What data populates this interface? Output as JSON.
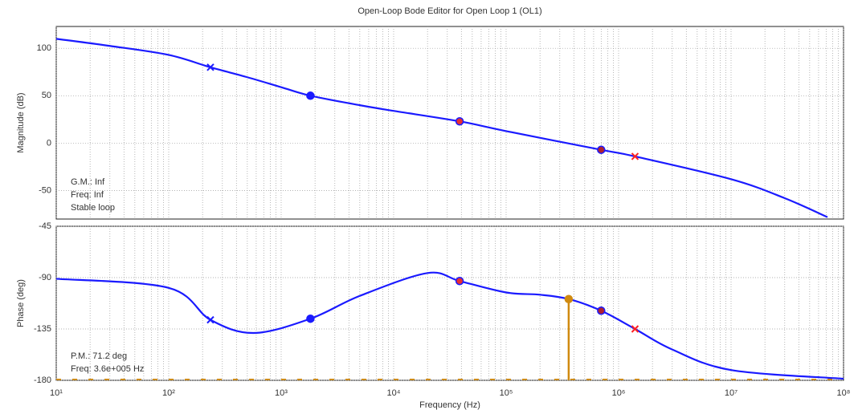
{
  "chart_data": [
    {
      "type": "line",
      "title": "Open-Loop Bode Editor for Open Loop 1 (OL1)",
      "y_label": "Magnitude (dB)",
      "log_x": true,
      "grid": true,
      "xlim": [
        10,
        100000000
      ],
      "ylim": [
        -80,
        123
      ],
      "yticks": [
        -50,
        0,
        50,
        100
      ],
      "annotations": [
        "G.M.: Inf",
        "Freq: Inf",
        "Stable loop"
      ],
      "series": [
        {
          "color": "#1a1aff",
          "x": [
            10,
            30,
            100,
            235,
            500,
            1000,
            1820,
            5000,
            10000,
            38600,
            100000,
            700000,
            1400000,
            10000000,
            30000000,
            72000000
          ],
          "values": [
            110,
            102.5,
            93,
            80,
            69.5,
            59,
            50,
            40,
            34,
            23,
            12.7,
            -7,
            -14,
            -38,
            -58,
            -78
          ]
        },
        {
          "color": "#1a1aff",
          "marker": "x",
          "x": [
            235
          ],
          "values": [
            80
          ]
        },
        {
          "color": "#1a1aff",
          "marker": "o",
          "x": [
            1820
          ],
          "values": [
            50
          ]
        },
        {
          "color": "#e83030",
          "marker": "o",
          "x": [
            38600
          ],
          "values": [
            23
          ]
        },
        {
          "color": "#b02030",
          "marker": "o",
          "x": [
            700000
          ],
          "values": [
            -7
          ]
        },
        {
          "color": "#ff2020",
          "marker": "x",
          "x": [
            1400000
          ],
          "values": [
            -14
          ]
        }
      ]
    },
    {
      "type": "line",
      "y_label": "Phase (deg)",
      "x_label": "Frequency (Hz)",
      "log_x": true,
      "grid": true,
      "xlim": [
        10,
        100000000
      ],
      "ylim": [
        -180,
        -45
      ],
      "yticks": [
        -180,
        -135,
        -90,
        -45
      ],
      "xticks": [
        {
          "value": 10,
          "label": "10¹"
        },
        {
          "value": 100,
          "label": "10²"
        },
        {
          "value": 1000,
          "label": "10³"
        },
        {
          "value": 10000,
          "label": "10⁴"
        },
        {
          "value": 100000,
          "label": "10⁵"
        },
        {
          "value": 1000000,
          "label": "10⁶"
        },
        {
          "value": 10000000,
          "label": "10⁷"
        },
        {
          "value": 100000000,
          "label": "10⁸"
        }
      ],
      "annotations": [
        "P.M.: 71.2 deg",
        "Freq: 3.6e+005 Hz"
      ],
      "series": [
        {
          "color": "#1a1aff",
          "x": [
            10,
            100,
            235,
            570,
            1820,
            5000,
            20000,
            38600,
            100000,
            200000,
            360000,
            700000,
            1400000,
            3000000,
            10000000,
            100000000
          ],
          "values": [
            -91,
            -99,
            -127,
            -138.5,
            -126,
            -106,
            -86,
            -93,
            -103,
            -105,
            -108.8,
            -119,
            -135,
            -153,
            -171,
            -178.6
          ]
        },
        {
          "color": "#1a1aff",
          "marker": "x",
          "x": [
            235
          ],
          "values": [
            -127
          ]
        },
        {
          "color": "#1a1aff",
          "marker": "o",
          "x": [
            1820
          ],
          "values": [
            -126
          ]
        },
        {
          "color": "#e83030",
          "marker": "o",
          "x": [
            38600
          ],
          "values": [
            -93
          ]
        },
        {
          "color": "#b02030",
          "marker": "o",
          "x": [
            700000
          ],
          "values": [
            -119
          ]
        },
        {
          "color": "#ff2020",
          "marker": "x",
          "x": [
            1400000
          ],
          "values": [
            -135
          ]
        },
        {
          "color": "#d08a10",
          "marker": "o",
          "stem": true,
          "x": [
            360000
          ],
          "values": [
            -108.8
          ]
        }
      ]
    }
  ]
}
